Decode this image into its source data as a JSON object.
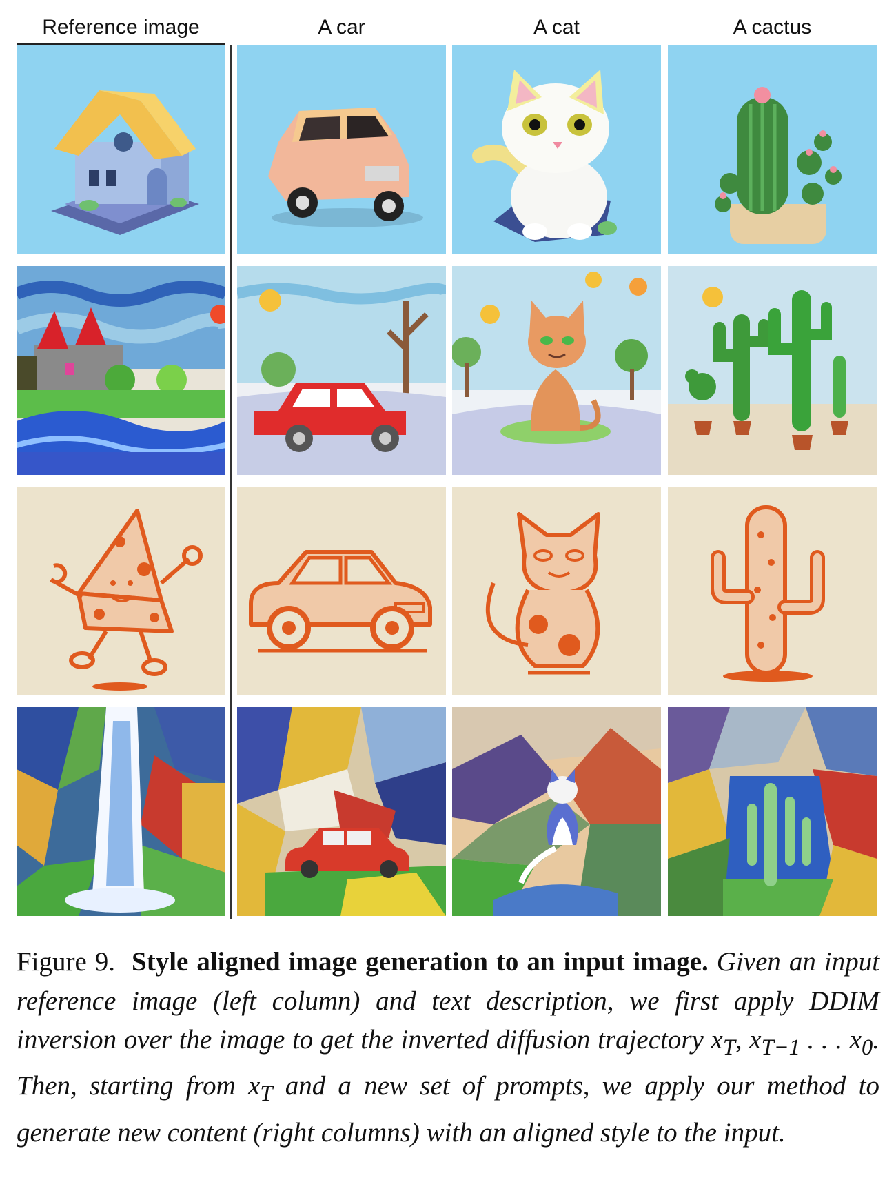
{
  "columns": {
    "reference": "Reference image",
    "car": "A car",
    "cat": "A cat",
    "cactus": "A cactus"
  },
  "rows": [
    {
      "style": "3d-clay",
      "subjects": [
        "house",
        "car",
        "cat",
        "cactus"
      ]
    },
    {
      "style": "crayon-drawing",
      "subjects": [
        "castle-landscape",
        "car",
        "cat",
        "cactus"
      ]
    },
    {
      "style": "orange-line-art",
      "subjects": [
        "cheese-character",
        "car",
        "cat",
        "cactus"
      ]
    },
    {
      "style": "cubist-painting",
      "subjects": [
        "waterfall",
        "car",
        "cat",
        "cactus"
      ]
    }
  ],
  "caption": {
    "label": "Figure 9.",
    "title": "Style aligned image generation to an input image.",
    "body_1": "Given an input reference image (left column) and text description, we first apply DDIM inversion over the image to get the inverted diffusion trajectory ",
    "math_1": "x",
    "math_1_sub": "T",
    "math_sep": ", ",
    "math_2": "x",
    "math_2_sub": "T−1",
    "math_dots": " . . . ",
    "math_3": "x",
    "math_3_sub": "0",
    "body_2": ". Then, starting from ",
    "math_4": "x",
    "math_4_sub": "T",
    "body_3": " and a new set of prompts, we apply our method to generate new content (right columns) with an aligned style to the input."
  },
  "colors": {
    "sky_blue": "#8fd3f1",
    "cream": "#ece3cc",
    "orange_ink": "#e05a1e"
  }
}
